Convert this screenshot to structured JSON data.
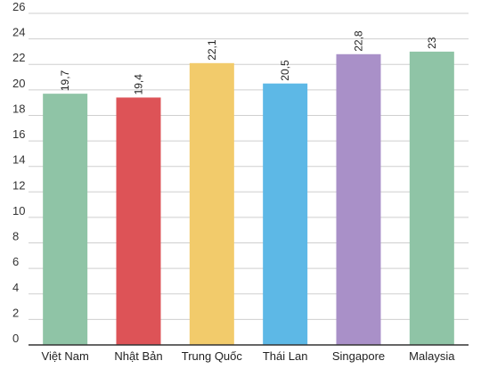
{
  "chart_data": {
    "type": "bar",
    "title": "",
    "xlabel": "",
    "ylabel": "",
    "categories": [
      "Việt Nam",
      "Nhật Bản",
      "Trung Quốc",
      "Thái Lan",
      "Singapore",
      "Malaysia"
    ],
    "values": [
      19.7,
      19.4,
      22.1,
      20.5,
      22.8,
      23
    ],
    "value_labels": [
      "19,7",
      "19,4",
      "22,1",
      "20,5",
      "22,8",
      "23"
    ],
    "colors": [
      "#8fc4a6",
      "#dd5357",
      "#f2cb6b",
      "#5db8e6",
      "#a990c8",
      "#8fc4a6"
    ],
    "ylim": [
      0,
      26
    ],
    "yticks": [
      0,
      2,
      4,
      6,
      8,
      10,
      12,
      14,
      16,
      18,
      20,
      22,
      24,
      26
    ],
    "grid": true,
    "legend": "none"
  }
}
